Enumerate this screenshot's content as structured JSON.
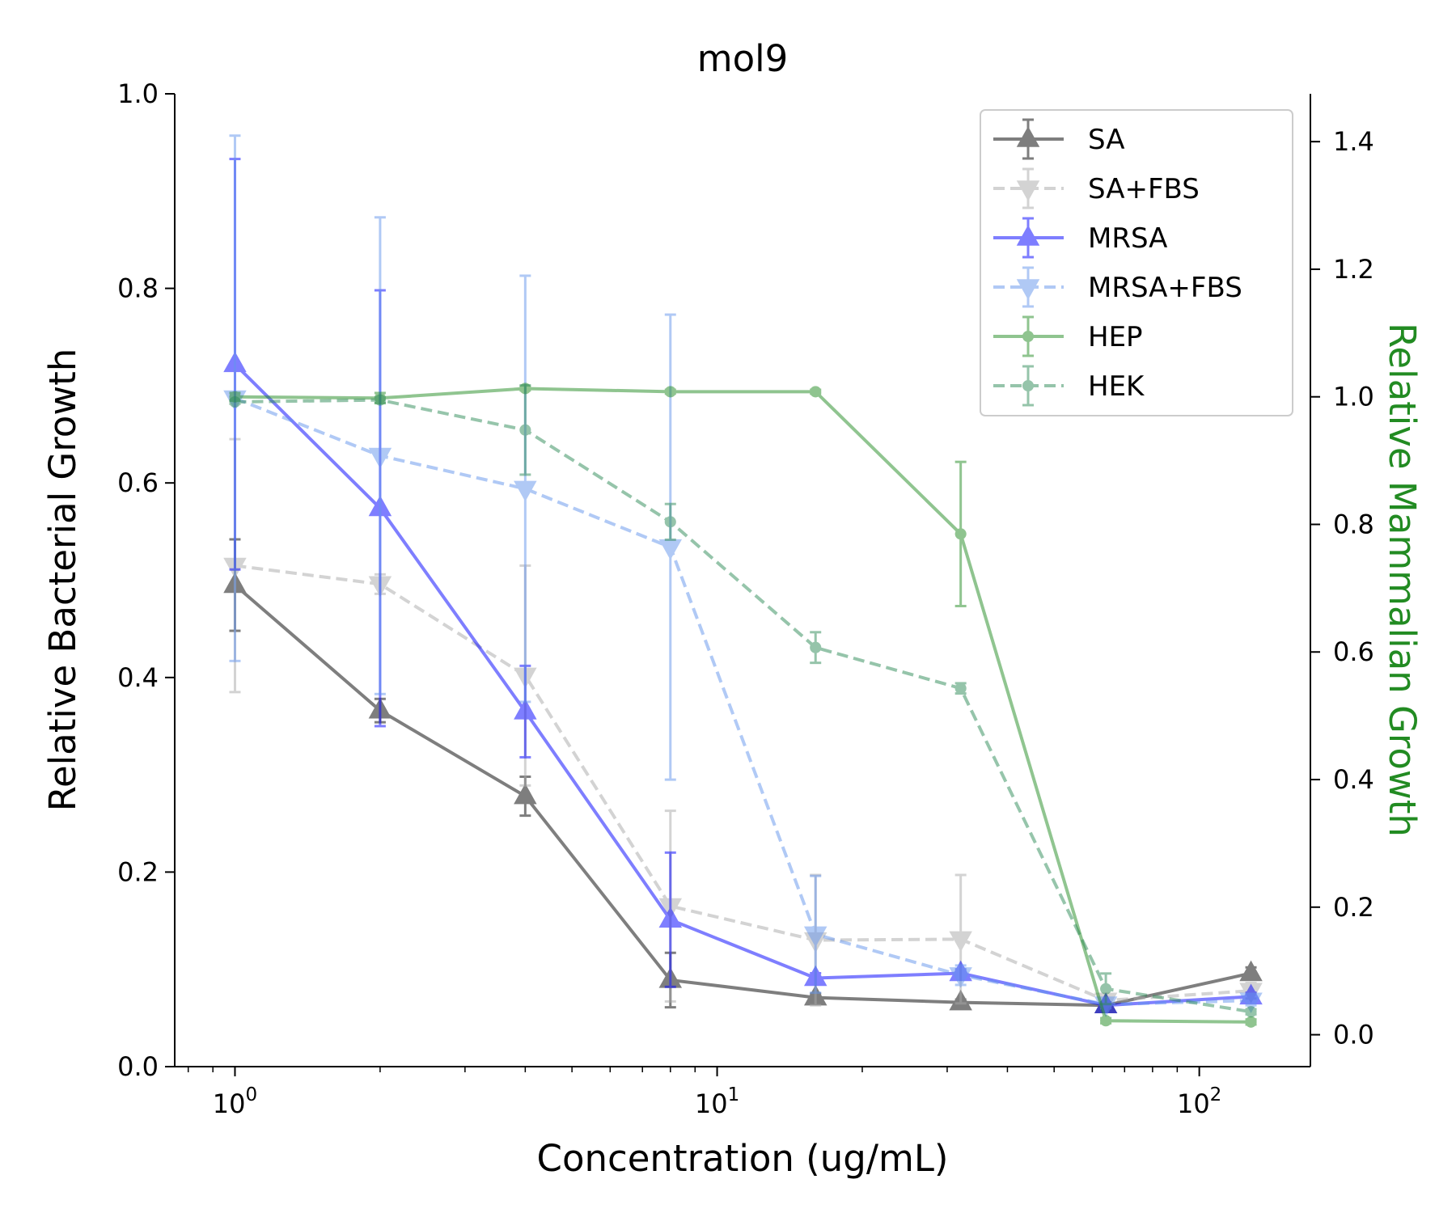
{
  "chart_data": {
    "type": "line",
    "title": "mol9",
    "xlabel": "Concentration (ug/mL)",
    "ylabel": "Relative Bacterial Growth",
    "y2label": "Relative Mammalian Growth",
    "x_scale": "log",
    "xlim": [
      0.75,
      170
    ],
    "ylim": [
      0,
      1.0
    ],
    "y2lim": [
      -0.05,
      1.475
    ],
    "x_ticks": [
      {
        "value": 1,
        "base": "10",
        "exp": "0"
      },
      {
        "value": 10,
        "base": "10",
        "exp": "1"
      },
      {
        "value": 100,
        "base": "10",
        "exp": "2"
      }
    ],
    "y_ticks": [
      "0.0",
      "0.2",
      "0.4",
      "0.6",
      "0.8",
      "1.0"
    ],
    "y2_ticks": [
      "0.0",
      "0.2",
      "0.4",
      "0.6",
      "0.8",
      "1.0",
      "1.2",
      "1.4"
    ],
    "grid": false,
    "legend_position": "top-right",
    "x": [
      1,
      2,
      4,
      8,
      16,
      32,
      64,
      128
    ],
    "series": [
      {
        "name": "SA",
        "axis": "left",
        "color": "#000000",
        "opacity": 0.5,
        "dash": "solid",
        "marker": "triangle-up",
        "values": [
          0.495,
          0.366,
          0.278,
          0.089,
          0.071,
          0.066,
          0.063,
          0.096
        ],
        "errors": [
          0.047,
          0.012,
          0.02,
          0.028,
          0.004,
          0.003,
          0.003,
          0.006
        ]
      },
      {
        "name": "SA+FBS",
        "axis": "left",
        "color": "#a9a9a9",
        "opacity": 0.5,
        "dash": "dashed",
        "marker": "triangle-down",
        "values": [
          0.515,
          0.496,
          0.402,
          0.165,
          0.13,
          0.131,
          0.068,
          0.078
        ],
        "errors": [
          0.13,
          0.01,
          0.113,
          0.098,
          0.067,
          0.066,
          0.005,
          0.008
        ]
      },
      {
        "name": "MRSA",
        "axis": "left",
        "color": "#0000ff",
        "opacity": 0.5,
        "dash": "solid",
        "marker": "triangle-up",
        "values": [
          0.722,
          0.574,
          0.365,
          0.151,
          0.091,
          0.096,
          0.063,
          0.072
        ],
        "errors": [
          0.211,
          0.224,
          0.047,
          0.069,
          0.005,
          0.004,
          0.003,
          0.004
        ]
      },
      {
        "name": "MRSA+FBS",
        "axis": "left",
        "color": "#6495ed",
        "opacity": 0.5,
        "dash": "dashed",
        "marker": "triangle-down",
        "values": [
          0.687,
          0.628,
          0.594,
          0.534,
          0.136,
          0.094,
          0.064,
          0.068
        ],
        "errors": [
          0.27,
          0.245,
          0.219,
          0.239,
          0.06,
          0.01,
          0.004,
          0.005
        ]
      },
      {
        "name": "HEP",
        "axis": "right",
        "color": "#228b22",
        "opacity": 0.5,
        "dash": "solid",
        "marker": "dot",
        "values": [
          1.0,
          0.998,
          1.013,
          1.008,
          1.008,
          0.785,
          0.022,
          0.02
        ],
        "errors": [
          0.006,
          0.008,
          0.003,
          0.003,
          0.003,
          0.113,
          0.004,
          0.004
        ]
      },
      {
        "name": "HEK",
        "axis": "right",
        "color": "#2e8b57",
        "opacity": 0.5,
        "dash": "dashed",
        "marker": "dot",
        "values": [
          0.992,
          0.995,
          0.948,
          0.804,
          0.607,
          0.543,
          0.072,
          0.036
        ],
        "errors": [
          0.003,
          0.004,
          0.07,
          0.028,
          0.024,
          0.008,
          0.024,
          0.004
        ]
      }
    ]
  }
}
